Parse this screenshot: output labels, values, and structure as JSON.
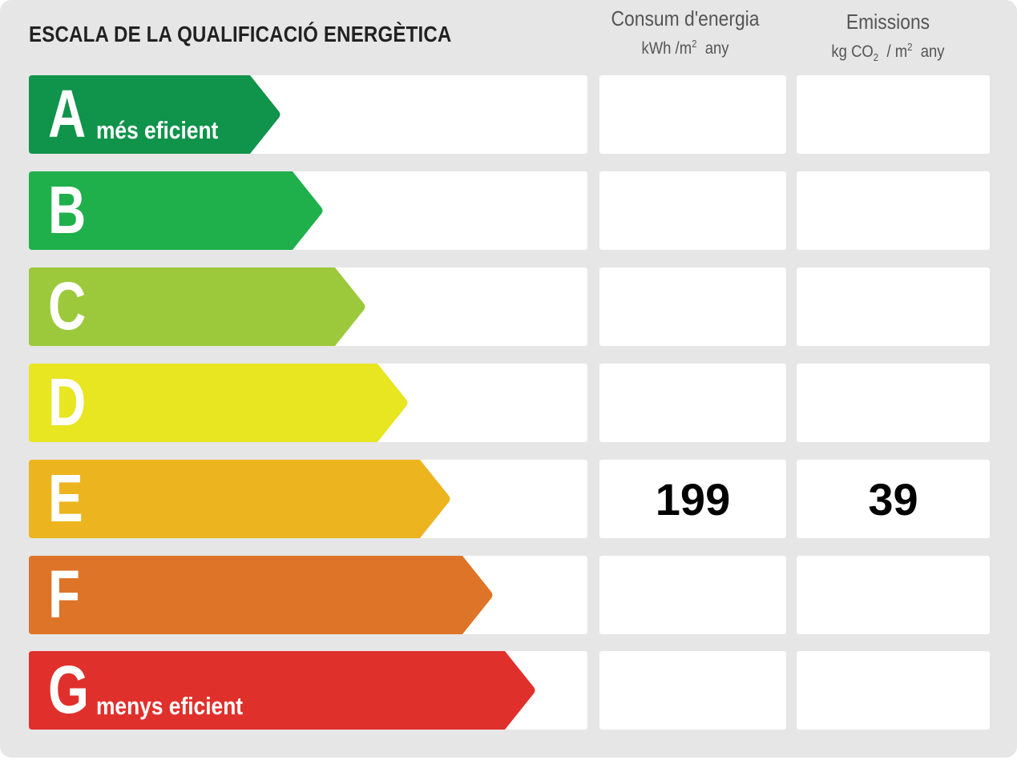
{
  "title": "ESCALA DE LA QUALIFICACIÓ ENERGÈTICA",
  "columns": {
    "energy": {
      "title": "Consum d'energia",
      "unit_prefix": "kWh /m",
      "unit_sup": "2",
      "unit_suffix": "any"
    },
    "emissions": {
      "title": "Emissions",
      "unit_prefix": "kg CO",
      "unit_sub": "2",
      "unit_mid": "/ m",
      "unit_sup": "2",
      "unit_suffix": "any"
    }
  },
  "ratings": [
    {
      "letter": "A",
      "caption": "més eficient",
      "color": "#10934a",
      "energy": "",
      "emissions": ""
    },
    {
      "letter": "B",
      "caption": "",
      "color": "#1fb04b",
      "energy": "",
      "emissions": ""
    },
    {
      "letter": "C",
      "caption": "",
      "color": "#9cc93b",
      "energy": "",
      "emissions": ""
    },
    {
      "letter": "D",
      "caption": "",
      "color": "#e8e521",
      "energy": "",
      "emissions": ""
    },
    {
      "letter": "E",
      "caption": "",
      "color": "#ecb41f",
      "energy": "199",
      "emissions": "39"
    },
    {
      "letter": "F",
      "caption": "",
      "color": "#dd7428",
      "energy": "",
      "emissions": ""
    },
    {
      "letter": "G",
      "caption": "menys eficient",
      "color": "#e0302c",
      "energy": "",
      "emissions": ""
    }
  ]
}
